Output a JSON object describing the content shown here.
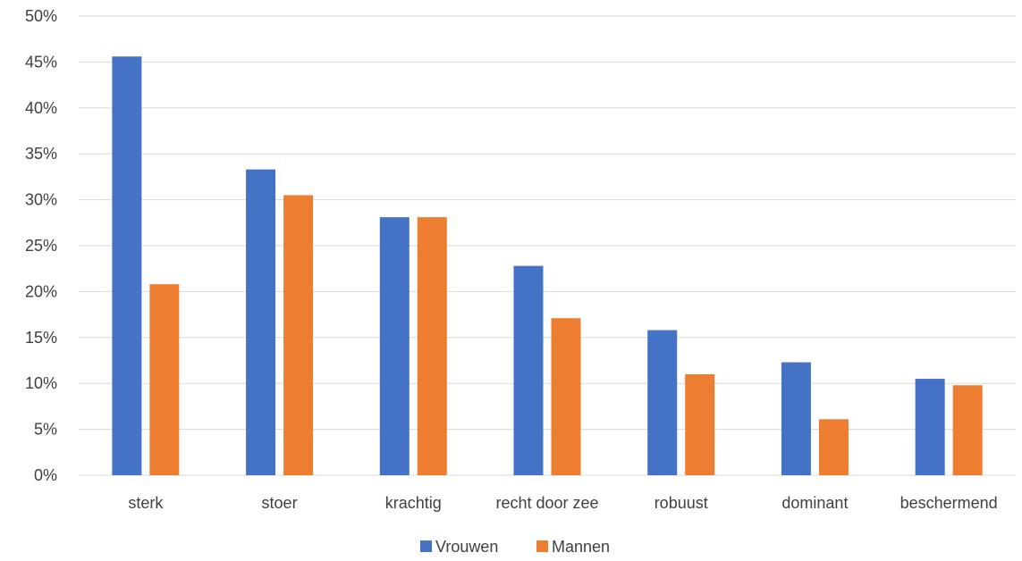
{
  "chart_data": {
    "type": "bar",
    "title": "",
    "xlabel": "",
    "ylabel": "",
    "ylim": [
      0,
      50
    ],
    "ytick_step": 5,
    "ytick_suffix": "%",
    "grid": true,
    "legend_position": "bottom",
    "categories": [
      "sterk",
      "stoer",
      "krachtig",
      "recht door zee",
      "robuust",
      "dominant",
      "beschermend"
    ],
    "series": [
      {
        "name": "Vrouwen",
        "color": "#4472c4",
        "values": [
          45.6,
          33.3,
          28.1,
          22.8,
          15.8,
          12.3,
          10.5
        ]
      },
      {
        "name": "Mannen",
        "color": "#ed7d31",
        "values": [
          20.8,
          30.5,
          28.1,
          17.1,
          11.0,
          6.1,
          9.8
        ]
      }
    ]
  }
}
